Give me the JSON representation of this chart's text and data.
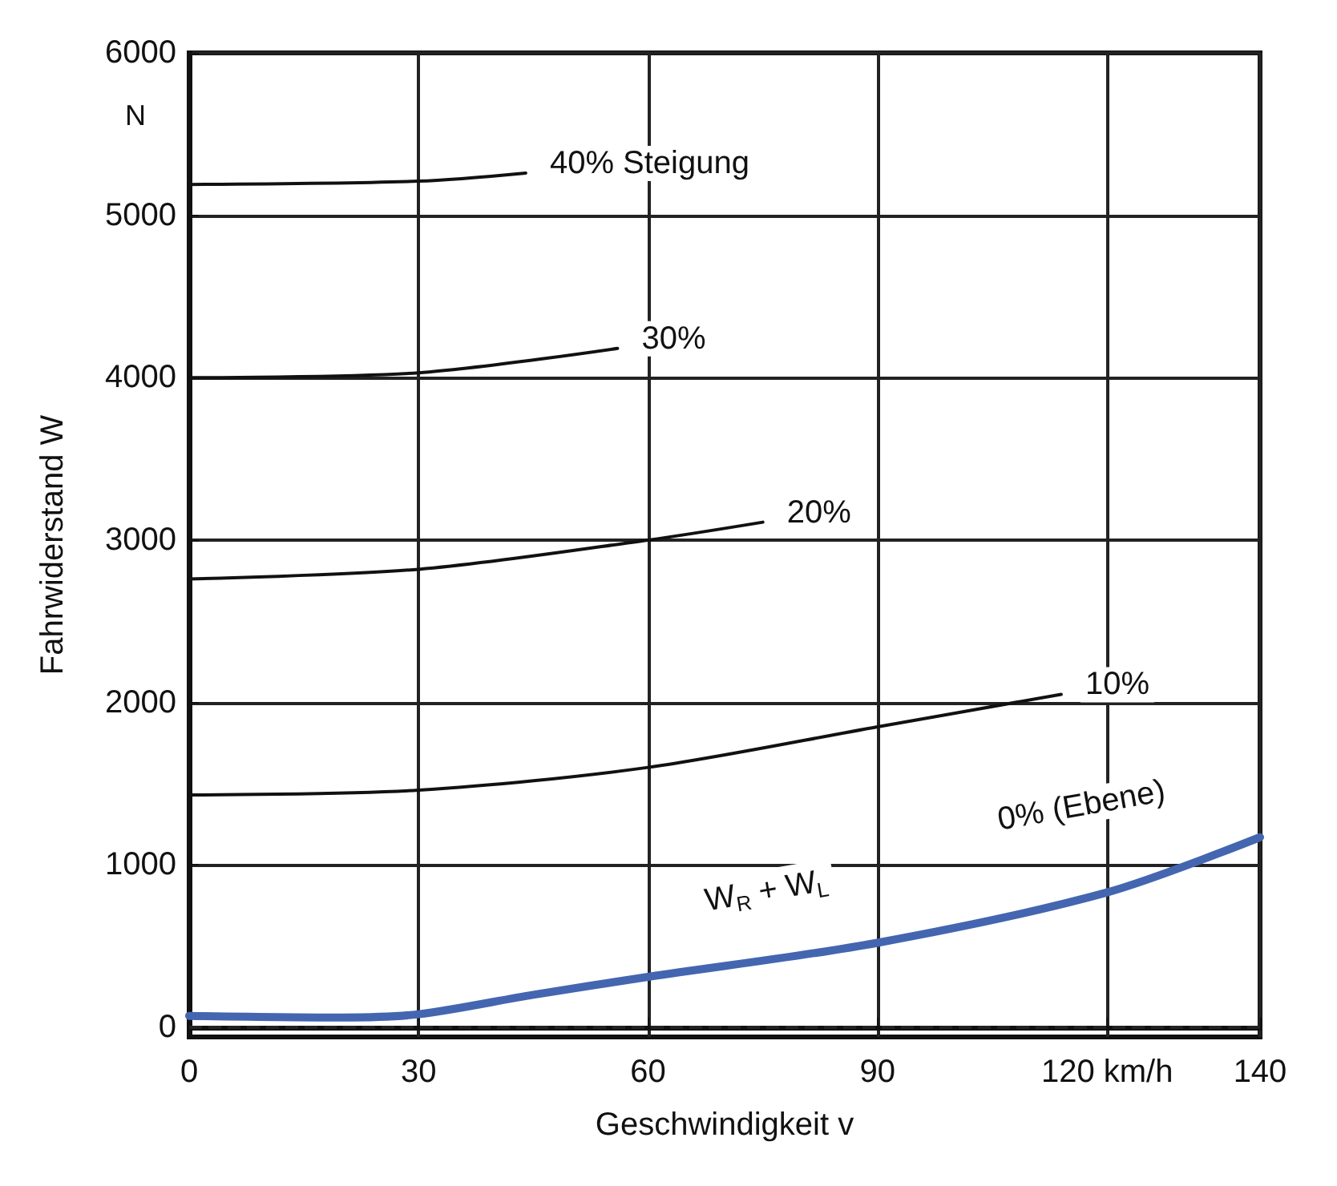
{
  "chart_data": {
    "type": "line",
    "xlabel": "Geschwindigkeit v",
    "ylabel": "Fahrwiderstand W",
    "xlim": [
      0,
      140
    ],
    "xticks": [
      0,
      30,
      60,
      90,
      {
        "value": 120,
        "label": "120 km/h"
      },
      140
    ],
    "ylim": [
      -60,
      6000
    ],
    "yticks": [
      0,
      1000,
      2000,
      3000,
      4000,
      5000,
      6000
    ],
    "grid": true,
    "legend": false,
    "marker": "none",
    "line_style": "solid",
    "series": [
      {
        "name": "40% Steigung",
        "color": "#111111",
        "x": [
          0,
          30,
          44
        ],
        "values": [
          5190,
          5210,
          5260
        ]
      },
      {
        "name": "30%",
        "color": "#111111",
        "x": [
          0,
          30,
          56
        ],
        "values": [
          4000,
          4030,
          4180
        ]
      },
      {
        "name": "20%",
        "color": "#111111",
        "x": [
          0,
          30,
          60,
          75
        ],
        "values": [
          2760,
          2820,
          3000,
          3110
        ]
      },
      {
        "name": "10%",
        "color": "#111111",
        "x": [
          0,
          30,
          60,
          90,
          114
        ],
        "values": [
          1430,
          1460,
          1600,
          1850,
          2050
        ]
      },
      {
        "name": "0% (Ebene)",
        "color": "#4466b0",
        "x": [
          0,
          20,
          30,
          45,
          60,
          90,
          120,
          140
        ],
        "values": [
          70,
          60,
          80,
          200,
          310,
          520,
          830,
          1170
        ]
      }
    ],
    "ref_lines": [
      {
        "axis": "y",
        "value": 0,
        "label": null,
        "line_style": "dashed",
        "color": "#222222"
      }
    ],
    "annotations": [
      "N",
      "W$_{R}$ + W$_{L}$"
    ]
  }
}
